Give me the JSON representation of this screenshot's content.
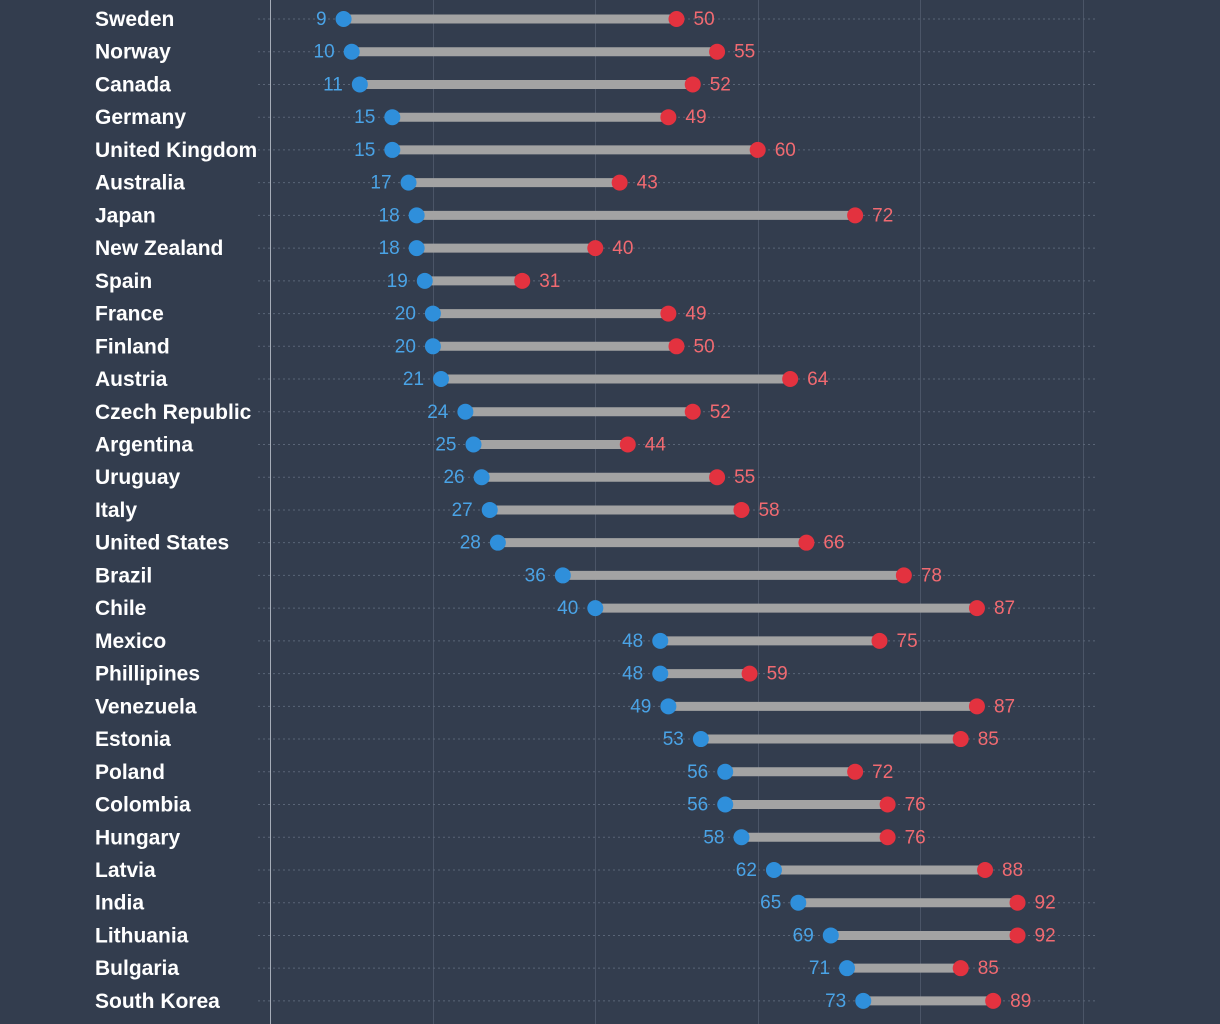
{
  "chart_data": {
    "type": "dumbbell",
    "title": "",
    "xlabel": "",
    "ylabel": "",
    "xlim": [
      0,
      100
    ],
    "grid": true,
    "colors": {
      "start": "#2f8fdb",
      "end": "#e3323f",
      "bar": "#a3a3a3",
      "start_label": "#4aa3e6",
      "end_label": "#f16a71",
      "background": "#333d4e"
    },
    "series": [
      {
        "name": "start",
        "color": "#2f8fdb"
      },
      {
        "name": "end",
        "color": "#e3323f"
      }
    ],
    "rows": [
      {
        "label": "Sweden",
        "start": 9,
        "end": 50
      },
      {
        "label": "Norway",
        "start": 10,
        "end": 55
      },
      {
        "label": "Canada",
        "start": 11,
        "end": 52
      },
      {
        "label": "Germany",
        "start": 15,
        "end": 49
      },
      {
        "label": "United Kingdom",
        "start": 15,
        "end": 60
      },
      {
        "label": "Australia",
        "start": 17,
        "end": 43
      },
      {
        "label": "Japan",
        "start": 18,
        "end": 72
      },
      {
        "label": "New Zealand",
        "start": 18,
        "end": 40
      },
      {
        "label": "Spain",
        "start": 19,
        "end": 31
      },
      {
        "label": "France",
        "start": 20,
        "end": 49
      },
      {
        "label": "Finland",
        "start": 20,
        "end": 50
      },
      {
        "label": "Austria",
        "start": 21,
        "end": 64
      },
      {
        "label": "Czech Republic",
        "start": 24,
        "end": 52
      },
      {
        "label": "Argentina",
        "start": 25,
        "end": 44
      },
      {
        "label": "Uruguay",
        "start": 26,
        "end": 55
      },
      {
        "label": "Italy",
        "start": 27,
        "end": 58
      },
      {
        "label": "United States",
        "start": 28,
        "end": 66
      },
      {
        "label": "Brazil",
        "start": 36,
        "end": 78
      },
      {
        "label": "Chile",
        "start": 40,
        "end": 87
      },
      {
        "label": "Mexico",
        "start": 48,
        "end": 75
      },
      {
        "label": "Phillipines",
        "start": 48,
        "end": 59
      },
      {
        "label": "Venezuela",
        "start": 49,
        "end": 87
      },
      {
        "label": "Estonia",
        "start": 53,
        "end": 85
      },
      {
        "label": "Poland",
        "start": 56,
        "end": 72
      },
      {
        "label": "Colombia",
        "start": 56,
        "end": 76
      },
      {
        "label": "Hungary",
        "start": 58,
        "end": 76
      },
      {
        "label": "Latvia",
        "start": 62,
        "end": 88
      },
      {
        "label": "India",
        "start": 65,
        "end": 92
      },
      {
        "label": "Lithuania",
        "start": 69,
        "end": 92
      },
      {
        "label": "Bulgaria",
        "start": 71,
        "end": 85
      },
      {
        "label": "South Korea",
        "start": 73,
        "end": 89
      }
    ]
  }
}
